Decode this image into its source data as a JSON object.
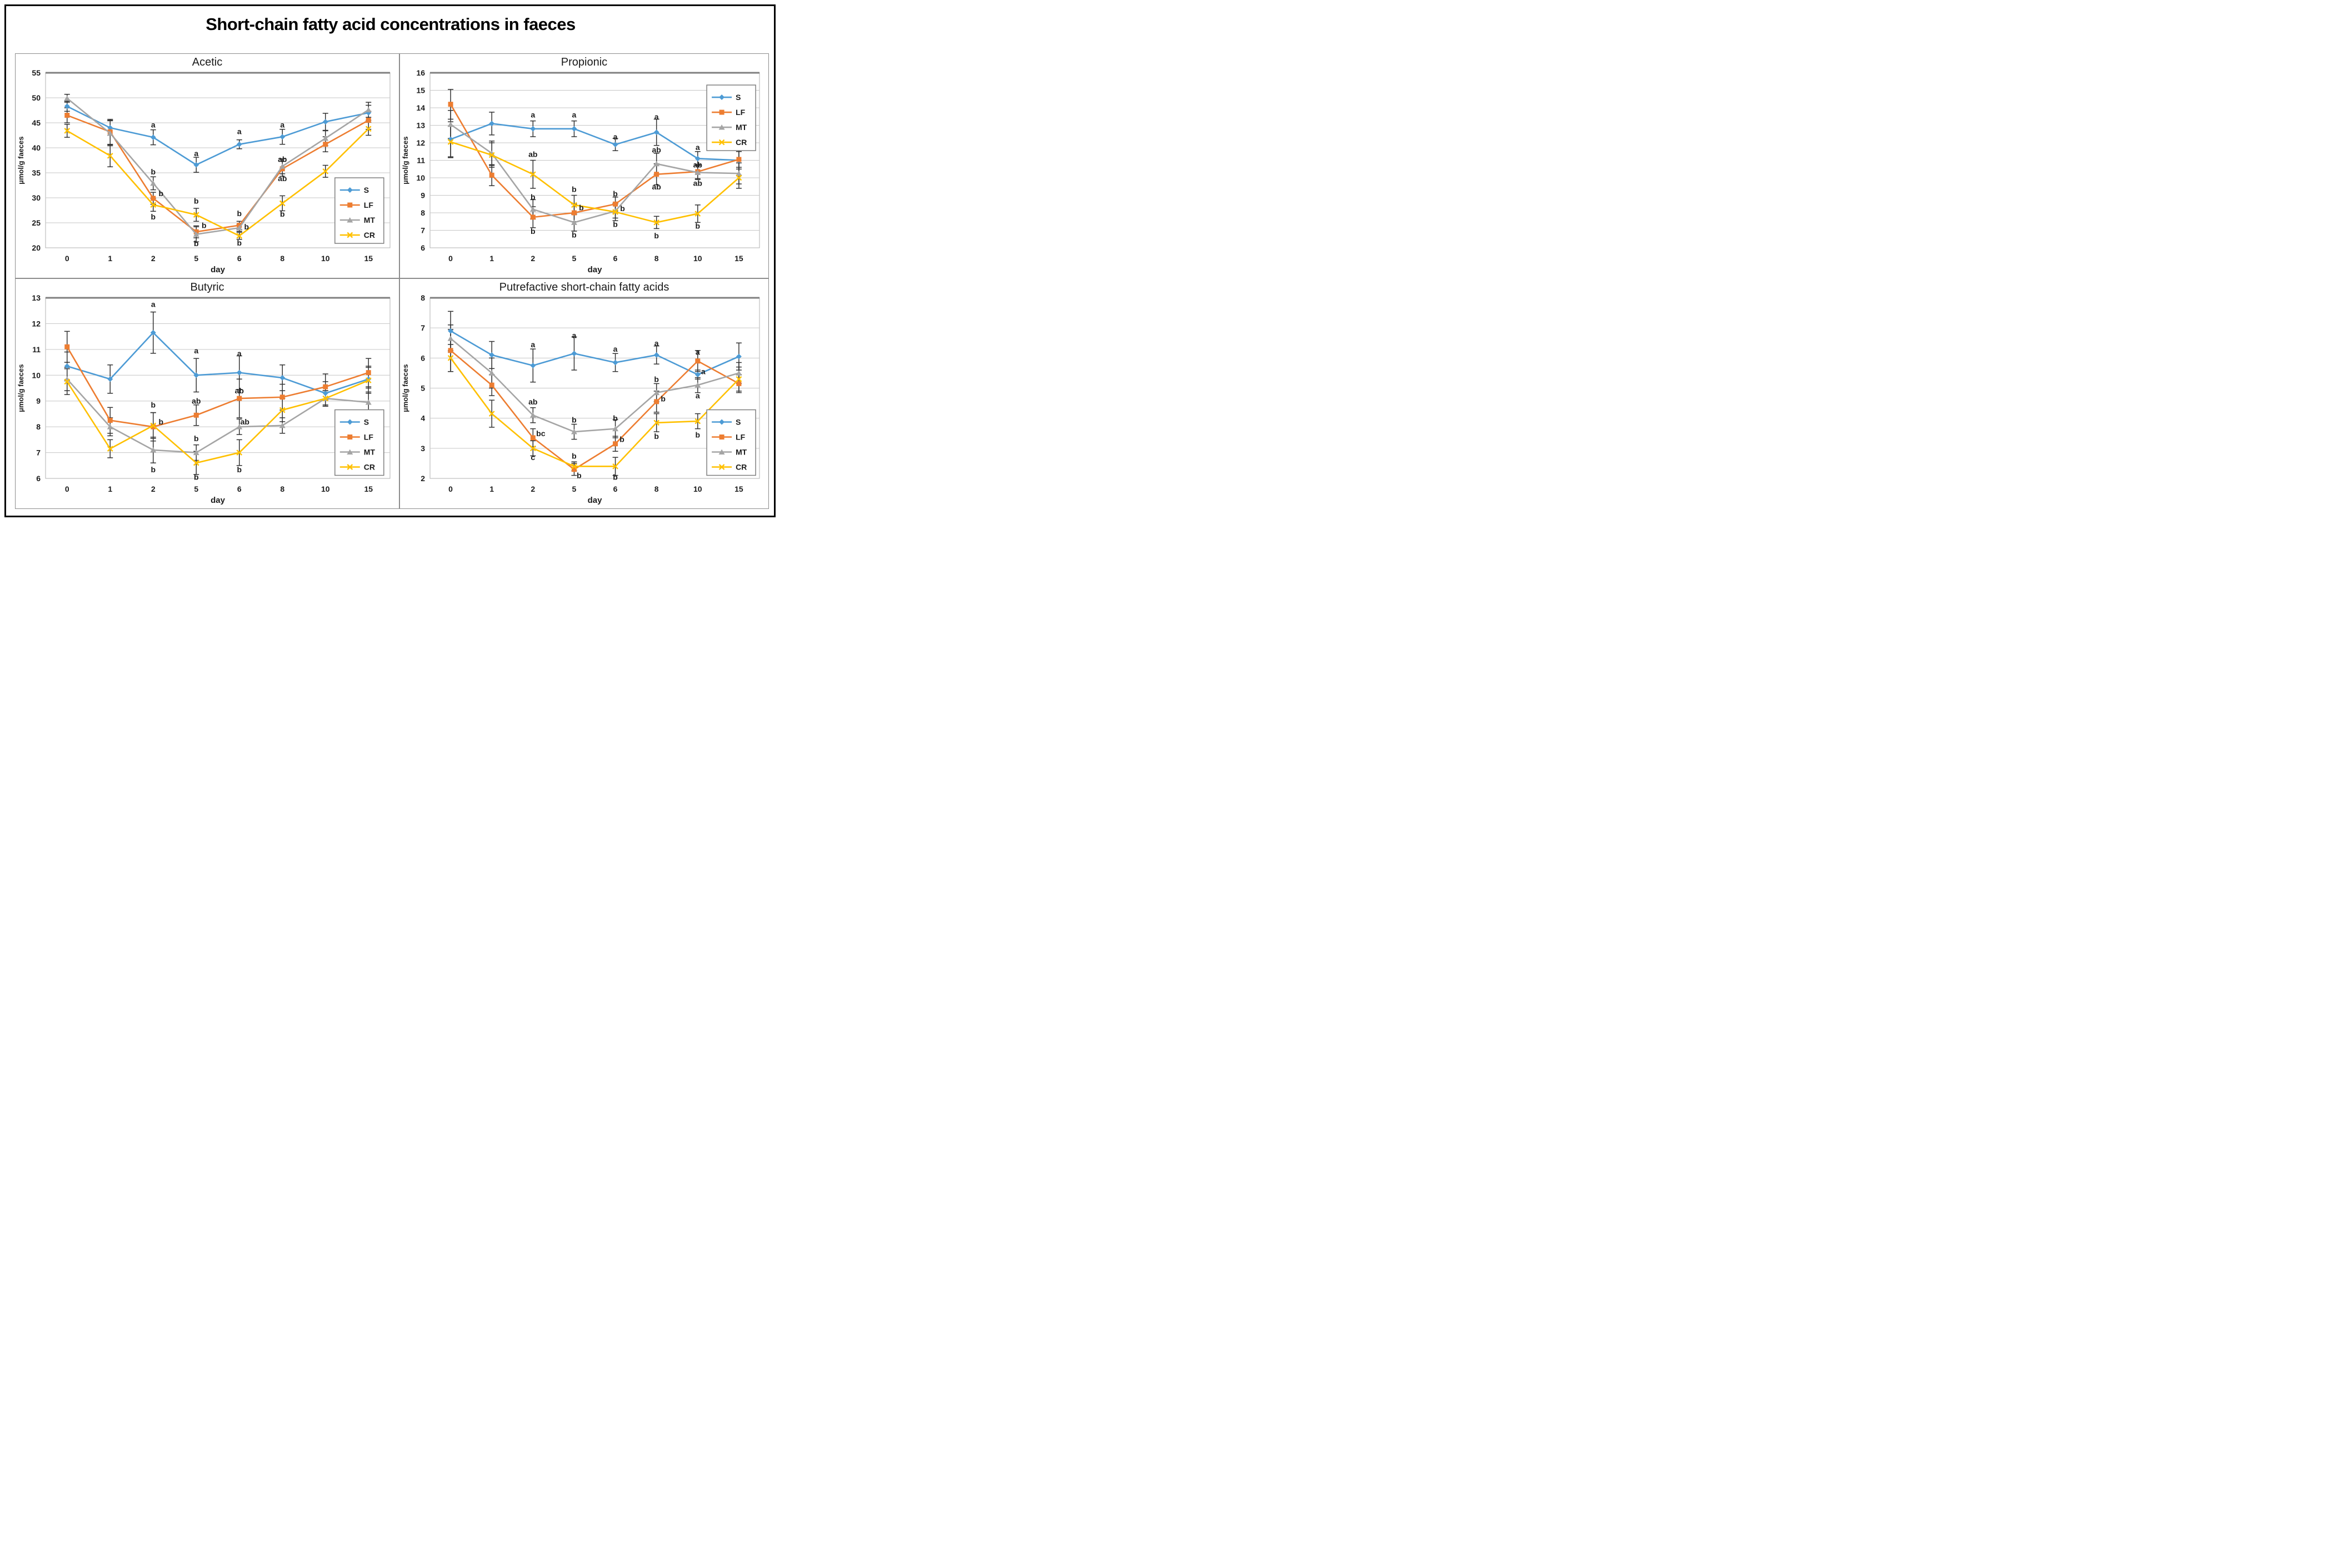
{
  "title": "Short-chain fatty acid concentrations in faeces",
  "colors": {
    "S": "#4D9BD5",
    "LF": "#ED7D31",
    "MT": "#A5A5A5",
    "CR": "#FFC000",
    "error_bar": "#333333",
    "gridline": "#c6c6c6",
    "plot_top_border": "#7f7f7f"
  },
  "chart_data": [
    {
      "id": "acetic",
      "type": "line",
      "title": "Acetic",
      "ylabel": "µmol/g faeces",
      "xlabel": "day",
      "ymin": 20,
      "ymax": 55,
      "ystep": 5,
      "grid": true,
      "categories": [
        "0",
        "1",
        "2",
        "5",
        "6",
        "8",
        "10",
        "15"
      ],
      "legend": {
        "x": 0.84,
        "y": 0.6,
        "position": "middle-right"
      },
      "series": [
        {
          "name": "S",
          "color": "#4D9BD5",
          "marker": "diamond",
          "values": [
            48.3,
            44.0,
            42.1,
            36.6,
            40.7,
            42.2,
            45.2,
            47.0
          ],
          "err": [
            1.0,
            1.5,
            1.5,
            1.5,
            0.9,
            1.5,
            1.7,
            1.5
          ]
        },
        {
          "name": "LF",
          "color": "#ED7D31",
          "marker": "square",
          "values": [
            46.5,
            43.2,
            29.9,
            23.2,
            24.5,
            35.8,
            40.7,
            45.5
          ],
          "err": [
            1.5,
            2.5,
            1.2,
            1.2,
            0.8,
            1.5,
            1.5,
            1.8
          ]
        },
        {
          "name": "MT",
          "color": "#A5A5A5",
          "marker": "triangle",
          "values": [
            49.9,
            42.9,
            32.9,
            22.7,
            24.0,
            36.3,
            41.9,
            47.6
          ],
          "err": [
            0.8,
            2.5,
            1.3,
            1.5,
            0.7,
            1.5,
            1.5,
            1.5
          ]
        },
        {
          "name": "CR",
          "color": "#FFC000",
          "marker": "x",
          "values": [
            43.4,
            38.4,
            28.6,
            26.6,
            22.4,
            28.9,
            35.3,
            43.8
          ],
          "err": [
            1.3,
            2.2,
            1.3,
            1.3,
            0.7,
            1.5,
            1.2,
            1.3
          ]
        }
      ],
      "annotations": [
        {
          "di": 2,
          "y": 44.6,
          "t": "a"
        },
        {
          "di": 2,
          "y": 35.2,
          "t": "b"
        },
        {
          "di": 2,
          "y": 30.9,
          "t": "b",
          "dx": 14
        },
        {
          "di": 2,
          "y": 26.2,
          "t": "b"
        },
        {
          "di": 3,
          "y": 38.9,
          "t": "a"
        },
        {
          "di": 3,
          "y": 29.4,
          "t": "b"
        },
        {
          "di": 3,
          "y": 24.5,
          "t": "b",
          "dx": 14
        },
        {
          "di": 3,
          "y": 20.9,
          "t": "b"
        },
        {
          "di": 4,
          "y": 43.3,
          "t": "a"
        },
        {
          "di": 4,
          "y": 26.9,
          "t": "b"
        },
        {
          "di": 4,
          "y": 24.2,
          "t": "b",
          "dx": 13
        },
        {
          "di": 4,
          "y": 21.0,
          "t": "b"
        },
        {
          "di": 5,
          "y": 44.6,
          "t": "a"
        },
        {
          "di": 5,
          "y": 37.7,
          "t": "ab"
        },
        {
          "di": 5,
          "y": 33.9,
          "t": "ab"
        },
        {
          "di": 5,
          "y": 26.8,
          "t": "b"
        }
      ]
    },
    {
      "id": "propionic",
      "type": "line",
      "title": "Propionic",
      "ylabel": "µmol/g faeces",
      "xlabel": "day",
      "ymin": 6,
      "ymax": 16,
      "ystep": 1,
      "grid": true,
      "categories": [
        "0",
        "1",
        "2",
        "5",
        "6",
        "8",
        "10",
        "15"
      ],
      "legend": {
        "x": 0.84,
        "y": 0.07,
        "position": "top-right"
      },
      "series": [
        {
          "name": "S",
          "color": "#4D9BD5",
          "marker": "diamond",
          "values": [
            12.2,
            13.1,
            12.8,
            12.8,
            11.9,
            12.6,
            11.1,
            11.0
          ],
          "err": [
            1.0,
            0.65,
            0.45,
            0.45,
            0.35,
            0.75,
            0.4,
            0.5
          ]
        },
        {
          "name": "LF",
          "color": "#ED7D31",
          "marker": "square",
          "values": [
            14.2,
            10.15,
            7.75,
            8.0,
            8.5,
            10.2,
            10.35,
            11.05
          ],
          "err": [
            0.85,
            0.6,
            0.6,
            0.5,
            0.4,
            0.6,
            0.4,
            0.9
          ]
        },
        {
          "name": "MT",
          "color": "#A5A5A5",
          "marker": "triangle",
          "values": [
            13.05,
            11.4,
            8.2,
            7.45,
            8.1,
            10.8,
            10.3,
            10.25
          ],
          "err": [
            0.8,
            0.7,
            0.55,
            0.5,
            0.4,
            0.6,
            0.4,
            0.6
          ]
        },
        {
          "name": "CR",
          "color": "#FFC000",
          "marker": "x",
          "values": [
            12.05,
            11.3,
            10.2,
            8.45,
            8.05,
            7.45,
            7.95,
            10.0
          ],
          "err": [
            0.9,
            0.7,
            0.8,
            0.55,
            0.5,
            0.35,
            0.5,
            0.6
          ]
        }
      ],
      "annotations": [
        {
          "di": 2,
          "y": 13.6,
          "t": "a"
        },
        {
          "di": 2,
          "y": 11.35,
          "t": "ab"
        },
        {
          "di": 2,
          "y": 8.9,
          "t": "b"
        },
        {
          "di": 2,
          "y": 6.95,
          "t": "b"
        },
        {
          "di": 3,
          "y": 13.6,
          "t": "a"
        },
        {
          "di": 3,
          "y": 9.35,
          "t": "b"
        },
        {
          "di": 3,
          "y": 8.3,
          "t": "b",
          "dx": 13
        },
        {
          "di": 3,
          "y": 6.75,
          "t": "b"
        },
        {
          "di": 4,
          "y": 12.35,
          "t": "a"
        },
        {
          "di": 4,
          "y": 9.1,
          "t": "b"
        },
        {
          "di": 4,
          "y": 8.25,
          "t": "b",
          "dx": 13
        },
        {
          "di": 4,
          "y": 7.35,
          "t": "b"
        },
        {
          "di": 5,
          "y": 13.5,
          "t": "a"
        },
        {
          "di": 5,
          "y": 11.6,
          "t": "ab"
        },
        {
          "di": 5,
          "y": 9.5,
          "t": "ab"
        },
        {
          "di": 5,
          "y": 6.7,
          "t": "b"
        },
        {
          "di": 6,
          "y": 11.75,
          "t": "a"
        },
        {
          "di": 6,
          "y": 10.75,
          "t": "ab"
        },
        {
          "di": 6,
          "y": 9.7,
          "t": "ab"
        },
        {
          "di": 6,
          "y": 7.25,
          "t": "b"
        }
      ]
    },
    {
      "id": "butyric",
      "type": "line",
      "title": "Butyric",
      "ylabel": "µmol/g faeces",
      "xlabel": "day",
      "ymin": 6,
      "ymax": 13,
      "ystep": 1,
      "grid": true,
      "categories": [
        "0",
        "1",
        "2",
        "5",
        "6",
        "8",
        "10",
        "15"
      ],
      "legend": {
        "x": 0.84,
        "y": 0.62,
        "position": "bottom-right"
      },
      "series": [
        {
          "name": "S",
          "color": "#4D9BD5",
          "marker": "diamond",
          "values": [
            10.35,
            9.85,
            11.65,
            10.0,
            10.1,
            9.9,
            9.3,
            9.85
          ],
          "err": [
            0.55,
            0.55,
            0.8,
            0.65,
            0.65,
            0.5,
            0.45,
            0.5
          ]
        },
        {
          "name": "LF",
          "color": "#ED7D31",
          "marker": "square",
          "values": [
            11.1,
            8.25,
            8.0,
            8.45,
            9.1,
            9.15,
            9.55,
            10.1
          ],
          "err": [
            0.6,
            0.5,
            0.55,
            0.4,
            0.75,
            0.5,
            0.5,
            0.55
          ]
        },
        {
          "name": "MT",
          "color": "#A5A5A5",
          "marker": "triangle",
          "values": [
            9.85,
            8.0,
            7.1,
            7.0,
            8.0,
            8.05,
            9.1,
            8.95
          ],
          "err": [
            0.45,
            0.35,
            0.5,
            0.3,
            0.3,
            0.3,
            0.3,
            0.55
          ]
        },
        {
          "name": "CR",
          "color": "#FFC000",
          "marker": "x",
          "values": [
            9.75,
            7.15,
            8.05,
            6.6,
            7.0,
            8.65,
            9.1,
            9.8
          ],
          "err": [
            0.5,
            0.35,
            0.5,
            0.45,
            0.5,
            0.45,
            0.3,
            0.5
          ]
        }
      ],
      "annotations": [
        {
          "di": 2,
          "y": 12.75,
          "t": "a"
        },
        {
          "di": 2,
          "y": 8.85,
          "t": "b"
        },
        {
          "di": 2,
          "y": 8.2,
          "t": "b",
          "dx": 14
        },
        {
          "di": 2,
          "y": 6.35,
          "t": "b"
        },
        {
          "di": 3,
          "y": 10.95,
          "t": "a"
        },
        {
          "di": 3,
          "y": 9.0,
          "t": "ab"
        },
        {
          "di": 3,
          "y": 7.55,
          "t": "b"
        },
        {
          "di": 3,
          "y": 6.05,
          "t": "b"
        },
        {
          "di": 4,
          "y": 10.85,
          "t": "a"
        },
        {
          "di": 4,
          "y": 9.4,
          "t": "ab"
        },
        {
          "di": 4,
          "y": 8.2,
          "t": "ab",
          "dx": 10
        },
        {
          "di": 4,
          "y": 6.35,
          "t": "b"
        }
      ]
    },
    {
      "id": "putrefactive",
      "type": "line",
      "title": "Putrefactive short-chain fatty acids",
      "ylabel": "µmol/g faeces",
      "xlabel": "day",
      "ymin": 2,
      "ymax": 8,
      "ystep": 1,
      "grid": true,
      "categories": [
        "0",
        "1",
        "2",
        "5",
        "6",
        "8",
        "10",
        "15"
      ],
      "legend": {
        "x": 0.84,
        "y": 0.62,
        "position": "bottom-right"
      },
      "series": [
        {
          "name": "S",
          "color": "#4D9BD5",
          "marker": "diamond",
          "values": [
            6.9,
            6.1,
            5.75,
            6.15,
            5.85,
            6.1,
            5.45,
            6.05
          ],
          "err": [
            0.65,
            0.45,
            0.55,
            0.55,
            0.3,
            0.3,
            0.15,
            0.45
          ]
        },
        {
          "name": "LF",
          "color": "#ED7D31",
          "marker": "square",
          "values": [
            6.25,
            5.1,
            3.35,
            2.3,
            3.15,
            4.55,
            5.9,
            5.15
          ],
          "err": [
            0.7,
            0.35,
            0.3,
            0.2,
            0.25,
            0.35,
            0.35,
            0.3
          ]
        },
        {
          "name": "MT",
          "color": "#A5A5A5",
          "marker": "triangle",
          "values": [
            6.65,
            5.5,
            4.1,
            3.55,
            3.65,
            4.85,
            5.1,
            5.5
          ],
          "err": [
            0.45,
            0.5,
            0.25,
            0.25,
            0.3,
            0.3,
            0.25,
            0.35
          ]
        },
        {
          "name": "CR",
          "color": "#FFC000",
          "marker": "x",
          "values": [
            6.0,
            4.15,
            3.0,
            2.4,
            2.4,
            3.85,
            3.9,
            5.3
          ],
          "err": [
            0.45,
            0.45,
            0.25,
            0.15,
            0.3,
            0.3,
            0.25,
            0.4
          ]
        }
      ],
      "annotations": [
        {
          "di": 2,
          "y": 6.45,
          "t": "a"
        },
        {
          "di": 2,
          "y": 4.55,
          "t": "ab"
        },
        {
          "di": 2,
          "y": 3.5,
          "t": "bc",
          "dx": 14
        },
        {
          "di": 2,
          "y": 2.7,
          "t": "c"
        },
        {
          "di": 3,
          "y": 6.75,
          "t": "a"
        },
        {
          "di": 3,
          "y": 3.95,
          "t": "b"
        },
        {
          "di": 3,
          "y": 2.75,
          "t": "b"
        },
        {
          "di": 3,
          "y": 2.1,
          "t": "b",
          "dx": 9
        },
        {
          "di": 4,
          "y": 6.3,
          "t": "a"
        },
        {
          "di": 4,
          "y": 4.0,
          "t": "b"
        },
        {
          "di": 4,
          "y": 3.3,
          "t": "b",
          "dx": 12
        },
        {
          "di": 4,
          "y": 2.05,
          "t": "b"
        },
        {
          "di": 5,
          "y": 6.5,
          "t": "a"
        },
        {
          "di": 5,
          "y": 5.3,
          "t": "b"
        },
        {
          "di": 5,
          "y": 4.65,
          "t": "b",
          "dx": 12
        },
        {
          "di": 5,
          "y": 3.4,
          "t": "b"
        },
        {
          "di": 6,
          "y": 6.2,
          "t": "a"
        },
        {
          "di": 6,
          "y": 5.55,
          "t": "a",
          "dx": 10
        },
        {
          "di": 6,
          "y": 4.75,
          "t": "a"
        },
        {
          "di": 6,
          "y": 3.45,
          "t": "b"
        }
      ]
    }
  ]
}
